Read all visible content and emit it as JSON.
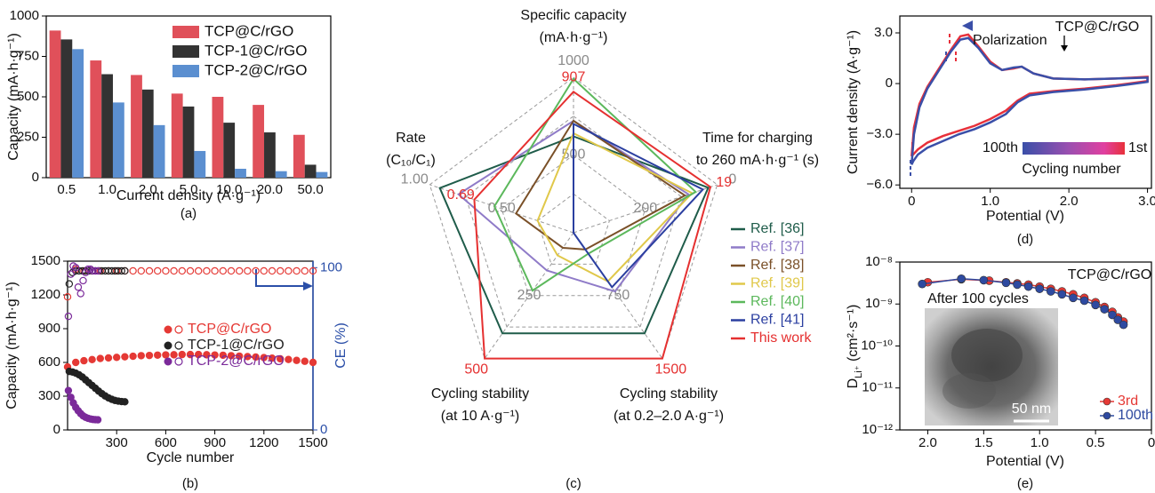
{
  "chart_data": [
    {
      "type": "bar",
      "caption": "(a)",
      "xlabel": "Current density (A·g⁻¹)",
      "ylabel": "Capacity (mA·h·g⁻¹)",
      "categories": [
        "0.5",
        "1.0",
        "2.0",
        "5.0",
        "10.0",
        "20.0",
        "50.0"
      ],
      "series": [
        {
          "name": "TCP@C/rGO",
          "color": "#e0505a",
          "values": [
            910,
            725,
            635,
            520,
            500,
            450,
            265
          ]
        },
        {
          "name": "TCP-1@C/rGO",
          "color": "#333333",
          "values": [
            855,
            640,
            545,
            440,
            340,
            280,
            80
          ]
        },
        {
          "name": "TCP-2@C/rGO",
          "color": "#5b8fd0",
          "values": [
            795,
            465,
            325,
            165,
            55,
            40,
            35
          ]
        }
      ],
      "ylim": [
        0,
        1000
      ],
      "yticks": [
        0,
        250,
        500,
        750,
        1000
      ],
      "legend": "upper-right"
    },
    {
      "type": "scatter",
      "caption": "(b)",
      "xlabel": "Cycle number",
      "ylabel": "Capacity (mA·h·g⁻¹)",
      "y2label": "CE (%)",
      "y2color": "#2b4fa8",
      "xlim": [
        0,
        1500
      ],
      "xticks": [
        300,
        600,
        900,
        1200,
        1500
      ],
      "ylim": [
        0,
        1500
      ],
      "yticks": [
        0,
        300,
        600,
        900,
        1200,
        1500
      ],
      "y2lim": [
        0,
        104
      ],
      "y2ticks": [
        0,
        100
      ],
      "legend": "center-right",
      "series": [
        {
          "name": "TCP@C/rGO",
          "color": "#e53935",
          "marker": "filled",
          "x": [
            0,
            50,
            100,
            150,
            200,
            250,
            300,
            350,
            400,
            450,
            500,
            550,
            600,
            650,
            700,
            750,
            800,
            850,
            900,
            950,
            1000,
            1050,
            1100,
            1150,
            1200,
            1250,
            1300,
            1350,
            1400,
            1450,
            1500
          ],
          "values": [
            560,
            600,
            615,
            625,
            635,
            640,
            645,
            650,
            655,
            660,
            662,
            665,
            667,
            668,
            670,
            670,
            670,
            668,
            666,
            664,
            660,
            656,
            652,
            648,
            643,
            638,
            632,
            626,
            618,
            610,
            600
          ]
        },
        {
          "name": "TCP-1@C/rGO",
          "color": "#222222",
          "marker": "filled",
          "x": [
            10,
            30,
            50,
            70,
            90,
            110,
            130,
            150,
            170,
            190,
            210,
            230,
            250,
            270,
            290,
            310,
            330,
            350
          ],
          "values": [
            520,
            515,
            505,
            490,
            470,
            445,
            420,
            395,
            370,
            345,
            322,
            302,
            285,
            272,
            262,
            256,
            252,
            250
          ]
        },
        {
          "name": "TCP-2@C/rGO",
          "color": "#7b2a9a",
          "marker": "filled",
          "x": [
            5,
            20,
            35,
            50,
            65,
            80,
            95,
            110,
            125,
            140,
            155,
            170,
            185
          ],
          "values": [
            350,
            290,
            240,
            200,
            170,
            145,
            125,
            112,
            103,
            97,
            93,
            91,
            90
          ]
        },
        {
          "color": "#e53935",
          "marker": "open",
          "axis": "y2",
          "x": [
            0,
            50,
            100,
            150,
            200,
            250,
            300,
            350,
            400,
            450,
            500,
            550,
            600,
            650,
            700,
            750,
            800,
            850,
            900,
            950,
            1000,
            1050,
            1100,
            1150,
            1200,
            1250,
            1300,
            1350,
            1400,
            1450,
            1500
          ],
          "values": [
            82,
            99,
            98,
            98,
            98,
            98,
            98,
            98,
            98,
            98,
            98,
            98,
            98,
            98,
            98,
            98,
            98,
            98,
            98,
            98,
            98,
            98,
            98,
            98,
            98,
            98,
            98,
            98,
            98,
            98,
            98
          ]
        },
        {
          "color": "#222222",
          "marker": "open",
          "axis": "y2",
          "x": [
            10,
            30,
            50,
            70,
            90,
            110,
            130,
            150,
            170,
            190,
            210,
            230,
            250,
            270,
            290,
            310,
            330,
            350
          ],
          "values": [
            90,
            97,
            98,
            98,
            98,
            98,
            98,
            98,
            98,
            98,
            98,
            98,
            98,
            98,
            98,
            98,
            98,
            98
          ]
        },
        {
          "color": "#7b2a9a",
          "marker": "open",
          "axis": "y2",
          "x": [
            5,
            20,
            35,
            50,
            65,
            80,
            95,
            110,
            125,
            140,
            155,
            170,
            185
          ],
          "values": [
            70,
            96,
            101,
            100,
            88,
            84,
            92,
            97,
            99,
            99,
            98,
            98,
            98
          ]
        }
      ]
    },
    {
      "type": "radar",
      "caption": "(c)",
      "legend": "right",
      "axes": [
        {
          "label": [
            "Specific capacity",
            "(mA·h·g⁻¹)"
          ],
          "lim": [
            0,
            1000
          ],
          "ticks": [
            500,
            1000
          ]
        },
        {
          "label": [
            "Time for charging",
            "to 260 mA·h·g⁻¹ (s)"
          ],
          "lim": [
            400,
            0
          ],
          "ticks": [
            200,
            0
          ]
        },
        {
          "label": [
            "Cycling stability",
            "(at 0.2–2.0 A·g⁻¹)"
          ],
          "lim": [
            0,
            1500
          ],
          "ticks": [
            750
          ]
        },
        {
          "label": [
            "Cycling stability",
            "(at 10 A·g⁻¹)"
          ],
          "lim": [
            0,
            500
          ],
          "ticks": [
            250
          ]
        },
        {
          "label": [
            "Rate",
            "(C₁₀/C₁)"
          ],
          "lim": [
            0,
            1
          ],
          "ticks": [
            {
              "value": 0.5,
              "label": "0.50"
            },
            {
              "value": 1,
              "label": "1.00"
            }
          ]
        }
      ],
      "series": [
        {
          "name": "Ref. [36]",
          "color": "#1f5c4a",
          "values": [
            620,
            25,
            1200,
            400,
            0.93
          ]
        },
        {
          "name": "Ref. [37]",
          "color": "#8f7bc8",
          "values": [
            720,
            80,
            700,
            150,
            0.8
          ]
        },
        {
          "name": "Ref. [38]",
          "color": "#7a5028",
          "values": [
            720,
            90,
            200,
            60,
            0.4
          ]
        },
        {
          "name": "Ref. [39]",
          "color": "#e0c84a",
          "values": [
            640,
            70,
            580,
            90,
            0.25
          ]
        },
        {
          "name": "Ref. [40]",
          "color": "#5cb85c",
          "values": [
            990,
            60,
            250,
            230,
            0.55
          ]
        },
        {
          "name": "Ref. [41]",
          "color": "#2b3fa0",
          "values": [
            700,
            40,
            650,
            0,
            0
          ]
        },
        {
          "name": "This work",
          "color": "#e53030",
          "values": [
            907,
            19,
            1500,
            500,
            0.69
          ],
          "show_values": true
        }
      ]
    },
    {
      "type": "line",
      "caption": "(d)",
      "xlabel": "Potential (V)",
      "ylabel": "Current density (A·g⁻¹)",
      "xlim": [
        -0.15,
        3.05
      ],
      "xticks": [
        0,
        {
          "value": 1,
          "label": "1.0"
        },
        {
          "value": 2,
          "label": "2.0"
        },
        {
          "value": 3,
          "label": "3.0"
        }
      ],
      "ylim": [
        -6.2,
        4.0
      ],
      "yticks": [
        {
          "value": -6,
          "label": "−6.0"
        },
        {
          "value": -3,
          "label": "−3.0"
        },
        0,
        {
          "value": 3,
          "label": "3.0"
        }
      ],
      "annotations": [
        "Polarization",
        "TCP@C/rGO",
        "Cycling number"
      ],
      "colorbar": true,
      "series": [
        {
          "name": "1st",
          "color": "#e8303a",
          "x": [
            0,
            0.03,
            0.1,
            0.2,
            0.35,
            0.5,
            0.62,
            0.72,
            0.85,
            1.0,
            1.15,
            1.3,
            1.4,
            1.55,
            1.8,
            2.2,
            2.6,
            3.0,
            3.0,
            2.6,
            2.2,
            1.8,
            1.5,
            1.35,
            1.2,
            1.0,
            0.8,
            0.6,
            0.4,
            0.2,
            0.08,
            0.02,
            0
          ],
          "values": [
            -4.3,
            -2.6,
            -1.2,
            -0.2,
            0.9,
            2.0,
            2.8,
            2.9,
            2.2,
            1.3,
            0.8,
            0.9,
            1.0,
            0.6,
            0.3,
            0.25,
            0.3,
            0.4,
            0.15,
            -0.1,
            -0.3,
            -0.45,
            -0.6,
            -1.0,
            -1.6,
            -2.1,
            -2.5,
            -2.8,
            -3.1,
            -3.5,
            -3.9,
            -4.2,
            -4.3
          ]
        },
        {
          "name": "100th",
          "color": "#3a4fa8",
          "x": [
            0,
            0.03,
            0.1,
            0.2,
            0.35,
            0.5,
            0.62,
            0.72,
            0.85,
            1.0,
            1.15,
            1.3,
            1.4,
            1.55,
            1.8,
            2.2,
            2.6,
            3.0,
            3.0,
            2.6,
            2.2,
            1.8,
            1.5,
            1.35,
            1.2,
            1.0,
            0.8,
            0.6,
            0.4,
            0.2,
            0.08,
            0.02,
            0
          ],
          "values": [
            -4.8,
            -3.0,
            -1.4,
            -0.3,
            0.8,
            1.9,
            2.6,
            2.7,
            2.1,
            1.2,
            0.8,
            0.95,
            1.0,
            0.6,
            0.3,
            0.25,
            0.3,
            0.35,
            0.1,
            -0.15,
            -0.35,
            -0.5,
            -0.7,
            -1.1,
            -1.8,
            -2.3,
            -2.7,
            -3.0,
            -3.4,
            -3.8,
            -4.2,
            -4.6,
            -4.8
          ]
        }
      ]
    },
    {
      "type": "line",
      "caption": "(e)",
      "xlabel": "Potential (V)",
      "ylabel": [
        "D",
        "Li⁺",
        " (cm²·s⁻¹)"
      ],
      "log_y": true,
      "markers": true,
      "legend": "lower-right",
      "xlim": [
        2.25,
        0
      ],
      "xticks": [
        {
          "value": 2,
          "label": "2.0"
        },
        1.5,
        {
          "value": 1,
          "label": "1.0"
        },
        0.5,
        0
      ],
      "ylim": [
        1e-12,
        1e-08
      ],
      "yticks": [
        {
          "value": 1e-12,
          "label": "10⁻¹²"
        },
        {
          "value": 1e-11,
          "label": "10⁻¹¹"
        },
        {
          "value": 1e-10,
          "label": "10⁻¹⁰"
        },
        {
          "value": 1e-09,
          "label": "10⁻⁹"
        },
        {
          "value": 1e-08,
          "label": "10⁻⁸"
        }
      ],
      "annotations": [
        "TCP@C/rGO",
        "After 100 cycles",
        "50 nm"
      ],
      "series": [
        {
          "name": "3rd",
          "color": "#e53935",
          "x": [
            2.0,
            1.7,
            1.45,
            1.3,
            1.2,
            1.1,
            1.0,
            0.9,
            0.8,
            0.7,
            0.6,
            0.5,
            0.42,
            0.35,
            0.3,
            0.25
          ],
          "values": [
            3.3e-09,
            3.9e-09,
            3.6e-09,
            3.3e-09,
            3.1e-09,
            2.9e-09,
            2.6e-09,
            2.3e-09,
            2e-09,
            1.7e-09,
            1.4e-09,
            1.1e-09,
            8.5e-10,
            6.5e-10,
            4.8e-10,
            3.8e-10
          ]
        },
        {
          "name": "100th",
          "color": "#2e4aa0",
          "x": [
            2.05,
            1.7,
            1.5,
            1.3,
            1.2,
            1.1,
            1.0,
            0.9,
            0.8,
            0.7,
            0.6,
            0.5,
            0.42,
            0.35,
            0.3,
            0.25
          ],
          "values": [
            3e-09,
            4e-09,
            3.7e-09,
            3.2e-09,
            2.9e-09,
            2.6e-09,
            2.3e-09,
            2e-09,
            1.7e-09,
            1.4e-09,
            1.2e-09,
            9.5e-10,
            7.5e-10,
            5.5e-10,
            4.2e-10,
            3.2e-10
          ]
        }
      ]
    }
  ]
}
